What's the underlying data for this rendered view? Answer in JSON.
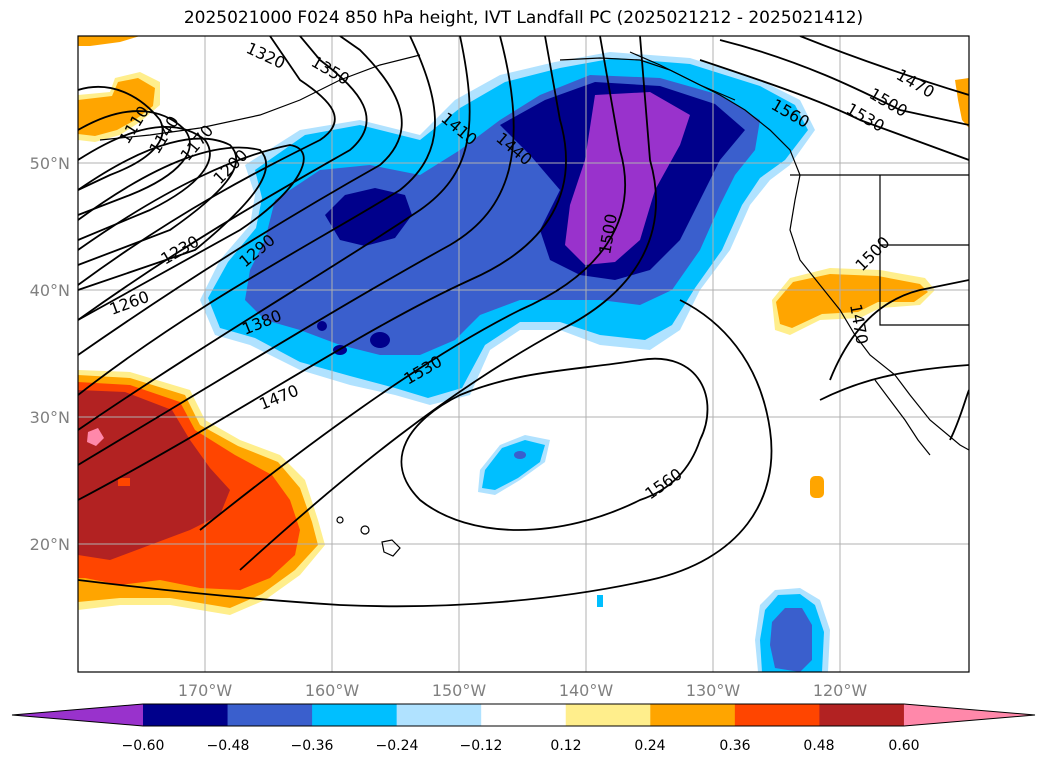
{
  "title": "2025021000 F024 850 hPa height, IVT Landfall PC (2025021212 - 2025021412)",
  "lat_labels": [
    "50°N",
    "40°N",
    "30°N",
    "20°N"
  ],
  "lon_labels": [
    "170°W",
    "160°W",
    "150°W",
    "140°W",
    "130°W",
    "120°W"
  ],
  "contour_labels": [
    "1110",
    "1140",
    "1170",
    "1200",
    "1230",
    "1260",
    "1290",
    "1320",
    "1350",
    "1380",
    "1410",
    "1440",
    "1470",
    "1500",
    "1530",
    "1560",
    "1560",
    "1530",
    "1500",
    "1470",
    "1500",
    "1470"
  ],
  "colorbar": {
    "ticks": [
      "−0.60",
      "−0.48",
      "−0.36",
      "−0.24",
      "−0.12",
      "0.12",
      "0.24",
      "0.36",
      "0.48",
      "0.60"
    ],
    "colors": [
      "#9932cc",
      "#00008b",
      "#3a5fcd",
      "#00bfff",
      "#b0e2ff",
      "#ffffff",
      "#ffee8c",
      "#ffa500",
      "#ff4500",
      "#b22222",
      "#ff88aa"
    ]
  },
  "palette": {
    "purple": "#9932cc",
    "navy": "#00008b",
    "blue": "#3a5fcd",
    "sky": "#00bfff",
    "lightsky": "#b0e2ff",
    "lightyellow": "#ffee8c",
    "orange": "#ffa500",
    "redorange": "#ff4500",
    "firebrick": "#b22222",
    "pink": "#ff88aa"
  }
}
